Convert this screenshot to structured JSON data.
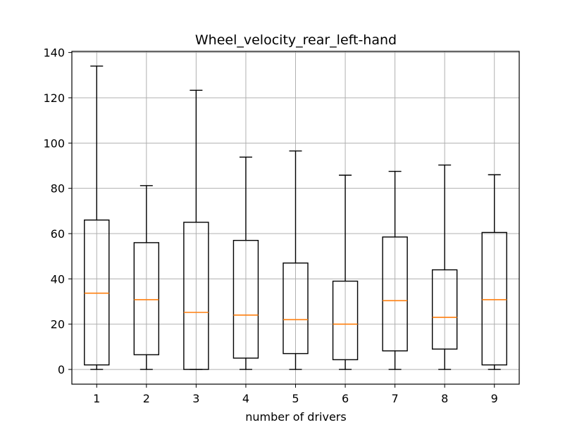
{
  "chart_data": {
    "type": "box",
    "title": "Wheel_velocity_rear_left-hand",
    "xlabel": "number of drivers",
    "ylabel": "",
    "categories": [
      "1",
      "2",
      "3",
      "4",
      "5",
      "6",
      "7",
      "8",
      "9"
    ],
    "ylim": [
      -6.5,
      140.5
    ],
    "yticks": [
      0,
      20,
      40,
      60,
      80,
      100,
      120,
      140
    ],
    "grid": true,
    "colors": {
      "box": "#000000",
      "median": "#ff7f0e",
      "grid": "#b0b0b0"
    },
    "boxes": [
      {
        "label": "1",
        "whislo": 0,
        "q1": 2,
        "med": 33.7,
        "q3": 66,
        "whishi": 134
      },
      {
        "label": "2",
        "whislo": 0,
        "q1": 6.5,
        "med": 30.8,
        "q3": 56,
        "whishi": 81.2
      },
      {
        "label": "3",
        "whislo": 0,
        "q1": 0,
        "med": 25.2,
        "q3": 65,
        "whishi": 123.3
      },
      {
        "label": "4",
        "whislo": 0,
        "q1": 5,
        "med": 24,
        "q3": 57,
        "whishi": 93.8
      },
      {
        "label": "5",
        "whislo": 0,
        "q1": 7,
        "med": 22,
        "q3": 47,
        "whishi": 96.5
      },
      {
        "label": "6",
        "whislo": 0,
        "q1": 4.3,
        "med": 20,
        "q3": 39,
        "whishi": 85.8
      },
      {
        "label": "7",
        "whislo": 0,
        "q1": 8.2,
        "med": 30.4,
        "q3": 58.5,
        "whishi": 87.5
      },
      {
        "label": "8",
        "whislo": 0,
        "q1": 9,
        "med": 23,
        "q3": 44,
        "whishi": 90.3
      },
      {
        "label": "9",
        "whislo": 0,
        "q1": 2,
        "med": 30.8,
        "q3": 60.5,
        "whishi": 86
      }
    ]
  }
}
